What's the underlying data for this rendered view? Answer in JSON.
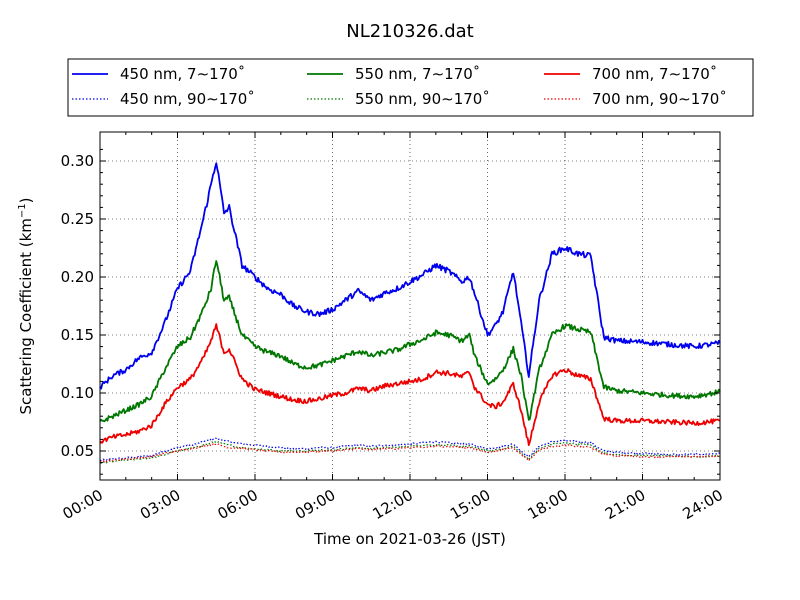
{
  "chart_data": {
    "type": "line",
    "title": "NL210326.dat",
    "xlabel": "Time on 2021-03-26 (JST)",
    "ylabel_main": "Scattering Coefficient (km",
    "ylabel_sup": "−1",
    "ylabel_end": ")",
    "xlim": [
      0,
      24
    ],
    "ylim": [
      0.025,
      0.325
    ],
    "x_ticks": [
      0,
      3,
      6,
      9,
      12,
      15,
      18,
      21,
      24
    ],
    "x_tick_labels": [
      "00:00",
      "03:00",
      "06:00",
      "09:00",
      "12:00",
      "15:00",
      "18:00",
      "21:00",
      "24:00"
    ],
    "y_ticks": [
      0.05,
      0.1,
      0.15,
      0.2,
      0.25,
      0.3
    ],
    "y_tick_labels": [
      "0.05",
      "0.10",
      "0.15",
      "0.20",
      "0.25",
      "0.30"
    ],
    "grid": true,
    "legend_position": "top",
    "x": [
      0,
      0.5,
      1,
      1.5,
      2,
      2.5,
      3,
      3.5,
      4,
      4.3,
      4.5,
      4.8,
      5,
      5.5,
      6,
      6.5,
      7,
      7.5,
      8,
      8.5,
      9,
      9.5,
      10,
      10.5,
      11,
      11.5,
      12,
      12.5,
      13,
      13.5,
      14,
      14.3,
      14.5,
      15,
      15.3,
      15.6,
      16,
      16.3,
      16.6,
      17,
      17.5,
      18,
      18.5,
      19,
      19.5,
      20,
      21,
      22,
      23,
      24
    ],
    "series": [
      {
        "name": "450 nm, 7∼170˚",
        "color": "#0000ee",
        "style": "solid",
        "values": [
          0.105,
          0.115,
          0.12,
          0.13,
          0.135,
          0.16,
          0.19,
          0.205,
          0.25,
          0.28,
          0.3,
          0.255,
          0.26,
          0.21,
          0.2,
          0.19,
          0.185,
          0.175,
          0.17,
          0.168,
          0.172,
          0.18,
          0.188,
          0.18,
          0.186,
          0.19,
          0.196,
          0.202,
          0.21,
          0.205,
          0.196,
          0.2,
          0.186,
          0.15,
          0.158,
          0.17,
          0.205,
          0.16,
          0.115,
          0.18,
          0.22,
          0.225,
          0.22,
          0.218,
          0.148,
          0.145,
          0.144,
          0.142,
          0.14,
          0.143
        ]
      },
      {
        "name": "550 nm, 7∼170˚",
        "color": "#007700",
        "style": "solid",
        "values": [
          0.075,
          0.08,
          0.085,
          0.09,
          0.097,
          0.12,
          0.14,
          0.148,
          0.172,
          0.19,
          0.215,
          0.18,
          0.182,
          0.15,
          0.14,
          0.135,
          0.132,
          0.125,
          0.122,
          0.124,
          0.128,
          0.132,
          0.136,
          0.132,
          0.135,
          0.137,
          0.142,
          0.146,
          0.152,
          0.15,
          0.145,
          0.15,
          0.132,
          0.108,
          0.112,
          0.12,
          0.138,
          0.115,
          0.075,
          0.12,
          0.15,
          0.158,
          0.155,
          0.152,
          0.105,
          0.102,
          0.1,
          0.098,
          0.097,
          0.101
        ]
      },
      {
        "name": "700 nm, 7∼170˚",
        "color": "#ee0000",
        "style": "solid",
        "values": [
          0.058,
          0.062,
          0.064,
          0.067,
          0.072,
          0.09,
          0.105,
          0.112,
          0.13,
          0.145,
          0.158,
          0.135,
          0.138,
          0.112,
          0.103,
          0.1,
          0.097,
          0.094,
          0.093,
          0.095,
          0.098,
          0.1,
          0.104,
          0.102,
          0.106,
          0.108,
          0.11,
          0.112,
          0.118,
          0.117,
          0.114,
          0.118,
          0.105,
          0.09,
          0.088,
          0.092,
          0.108,
          0.085,
          0.055,
          0.092,
          0.115,
          0.12,
          0.115,
          0.112,
          0.078,
          0.076,
          0.076,
          0.075,
          0.074,
          0.076
        ]
      },
      {
        "name": "450 nm, 90∼170˚",
        "color": "#0000ee",
        "style": "dotted",
        "values": [
          0.042,
          0.043,
          0.044,
          0.045,
          0.046,
          0.05,
          0.053,
          0.055,
          0.058,
          0.06,
          0.061,
          0.059,
          0.058,
          0.056,
          0.055,
          0.054,
          0.053,
          0.052,
          0.052,
          0.053,
          0.053,
          0.054,
          0.055,
          0.054,
          0.055,
          0.055,
          0.056,
          0.057,
          0.058,
          0.057,
          0.056,
          0.056,
          0.055,
          0.052,
          0.053,
          0.054,
          0.056,
          0.05,
          0.045,
          0.054,
          0.058,
          0.059,
          0.058,
          0.057,
          0.05,
          0.049,
          0.048,
          0.047,
          0.047,
          0.048
        ]
      },
      {
        "name": "550 nm, 90∼170˚",
        "color": "#007700",
        "style": "dotted",
        "values": [
          0.04,
          0.041,
          0.042,
          0.043,
          0.044,
          0.047,
          0.05,
          0.052,
          0.055,
          0.057,
          0.058,
          0.056,
          0.055,
          0.053,
          0.052,
          0.051,
          0.05,
          0.05,
          0.05,
          0.051,
          0.051,
          0.052,
          0.053,
          0.052,
          0.053,
          0.053,
          0.054,
          0.055,
          0.055,
          0.055,
          0.054,
          0.054,
          0.053,
          0.05,
          0.051,
          0.052,
          0.054,
          0.048,
          0.043,
          0.052,
          0.056,
          0.057,
          0.056,
          0.055,
          0.048,
          0.047,
          0.046,
          0.046,
          0.045,
          0.046
        ]
      },
      {
        "name": "700 nm, 90∼170˚",
        "color": "#ee0000",
        "style": "dotted",
        "values": [
          0.041,
          0.042,
          0.043,
          0.044,
          0.045,
          0.048,
          0.05,
          0.052,
          0.054,
          0.055,
          0.056,
          0.054,
          0.053,
          0.052,
          0.051,
          0.05,
          0.049,
          0.049,
          0.049,
          0.05,
          0.05,
          0.051,
          0.052,
          0.051,
          0.052,
          0.052,
          0.053,
          0.053,
          0.054,
          0.054,
          0.053,
          0.053,
          0.052,
          0.049,
          0.05,
          0.051,
          0.053,
          0.047,
          0.042,
          0.051,
          0.054,
          0.055,
          0.054,
          0.053,
          0.047,
          0.046,
          0.045,
          0.045,
          0.045,
          0.046
        ]
      }
    ],
    "legend_order": [
      0,
      1,
      2,
      3,
      4,
      5
    ]
  }
}
